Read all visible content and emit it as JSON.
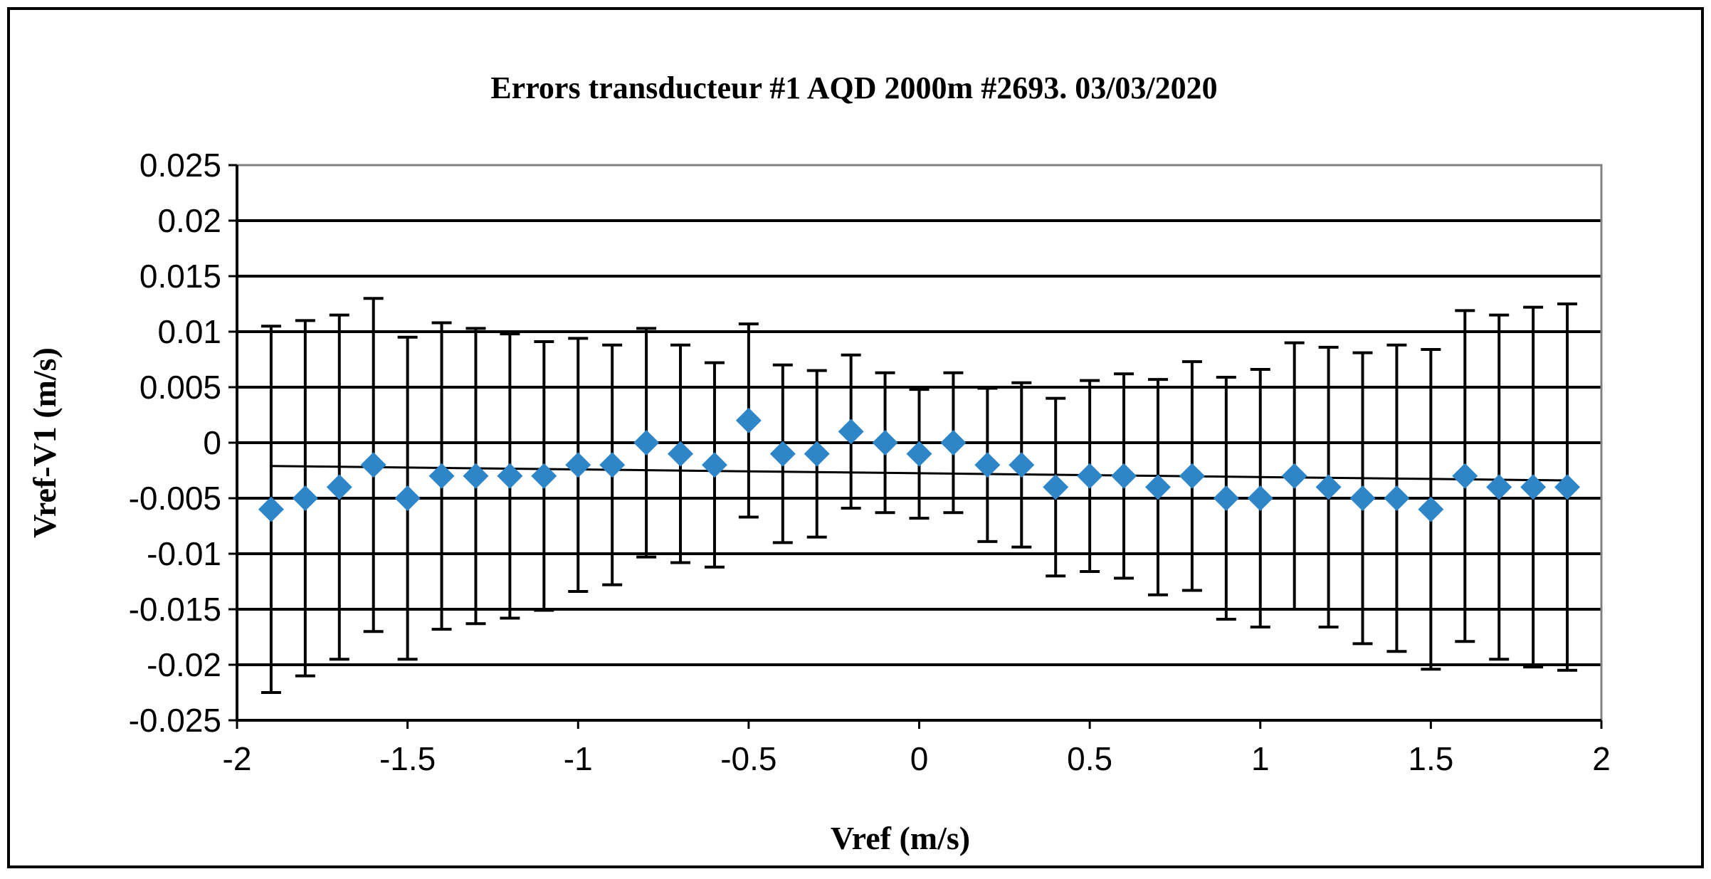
{
  "chart_data": {
    "type": "scatter",
    "title": "Errors transducteur #1 AQD 2000m  #2693. 03/03/2020",
    "xlabel": "Vref (m/s)",
    "ylabel": "Vref-V1 (m/s)",
    "xlim": [
      -2,
      2
    ],
    "ylim": [
      -0.025,
      0.025
    ],
    "xticks": [
      "-2",
      "-1.5",
      "-1",
      "-0.5",
      "0",
      "0.5",
      "1",
      "1.5",
      "2"
    ],
    "yticks": [
      "0.025",
      "0.02",
      "0.015",
      "0.01",
      "0.005",
      "0",
      "-0.005",
      "-0.01",
      "-0.015",
      "-0.02",
      "-0.025"
    ],
    "grid": "horizontal",
    "legend": "none",
    "marker_color": "#2E86C8",
    "points": [
      {
        "x": -1.9,
        "y": -0.006,
        "err": 0.0165
      },
      {
        "x": -1.8,
        "y": -0.005,
        "err": 0.016
      },
      {
        "x": -1.7,
        "y": -0.004,
        "err": 0.0155
      },
      {
        "x": -1.6,
        "y": -0.002,
        "err": 0.015
      },
      {
        "x": -1.5,
        "y": -0.005,
        "err": 0.0145
      },
      {
        "x": -1.4,
        "y": -0.003,
        "err": 0.0138
      },
      {
        "x": -1.3,
        "y": -0.003,
        "err": 0.0133
      },
      {
        "x": -1.2,
        "y": -0.003,
        "err": 0.0128
      },
      {
        "x": -1.1,
        "y": -0.003,
        "err": 0.0121
      },
      {
        "x": -1.0,
        "y": -0.002,
        "err": 0.0114
      },
      {
        "x": -0.9,
        "y": -0.002,
        "err": 0.0108
      },
      {
        "x": -0.8,
        "y": 0.0,
        "err": 0.0103
      },
      {
        "x": -0.7,
        "y": -0.001,
        "err": 0.0098
      },
      {
        "x": -0.6,
        "y": -0.002,
        "err": 0.0092
      },
      {
        "x": -0.5,
        "y": 0.002,
        "err": 0.0087
      },
      {
        "x": -0.4,
        "y": -0.001,
        "err": 0.008
      },
      {
        "x": -0.3,
        "y": -0.001,
        "err": 0.0075
      },
      {
        "x": -0.2,
        "y": 0.001,
        "err": 0.0069
      },
      {
        "x": -0.1,
        "y": 0.0,
        "err": 0.0063
      },
      {
        "x": 0.0,
        "y": -0.001,
        "err": 0.0058
      },
      {
        "x": 0.1,
        "y": 0.0,
        "err": 0.0063
      },
      {
        "x": 0.2,
        "y": -0.002,
        "err": 0.0069
      },
      {
        "x": 0.3,
        "y": -0.002,
        "err": 0.0074
      },
      {
        "x": 0.4,
        "y": -0.004,
        "err": 0.008
      },
      {
        "x": 0.5,
        "y": -0.003,
        "err": 0.0086
      },
      {
        "x": 0.6,
        "y": -0.003,
        "err": 0.0092
      },
      {
        "x": 0.7,
        "y": -0.004,
        "err": 0.0097
      },
      {
        "x": 0.8,
        "y": -0.003,
        "err": 0.0103
      },
      {
        "x": 0.9,
        "y": -0.005,
        "err": 0.0109
      },
      {
        "x": 1.0,
        "y": -0.005,
        "err": 0.0116
      },
      {
        "x": 1.1,
        "y": -0.003,
        "err": 0.012
      },
      {
        "x": 1.2,
        "y": -0.004,
        "err": 0.0126
      },
      {
        "x": 1.3,
        "y": -0.005,
        "err": 0.0131
      },
      {
        "x": 1.4,
        "y": -0.005,
        "err": 0.0138
      },
      {
        "x": 1.5,
        "y": -0.006,
        "err": 0.0144
      },
      {
        "x": 1.6,
        "y": -0.003,
        "err": 0.0149
      },
      {
        "x": 1.7,
        "y": -0.004,
        "err": 0.0155
      },
      {
        "x": 1.8,
        "y": -0.004,
        "err": 0.0162
      },
      {
        "x": 1.9,
        "y": -0.004,
        "err": 0.0165
      }
    ],
    "trendline": {
      "x": [
        -1.9,
        1.9
      ],
      "y": [
        -0.0021,
        -0.0034
      ]
    }
  }
}
